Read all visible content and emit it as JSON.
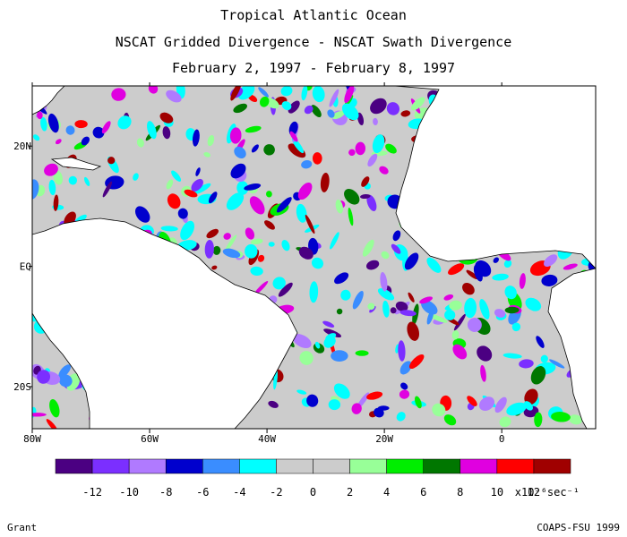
{
  "title_lines": [
    "Tropical Atlantic Ocean",
    "NSCAT Gridded Divergence - NSCAT Swath Divergence",
    "February 2, 1997 - February 8, 1997"
  ],
  "map": {
    "lon_range": [
      -80,
      16
    ],
    "lat_range": [
      -27,
      30
    ],
    "lon_ticks": [
      {
        "value": -80,
        "label": "80W"
      },
      {
        "value": -60,
        "label": "60W"
      },
      {
        "value": -40,
        "label": "40W"
      },
      {
        "value": -20,
        "label": "20W"
      },
      {
        "value": 0,
        "label": "0"
      }
    ],
    "lat_ticks": [
      {
        "value": 20,
        "label": "20N"
      },
      {
        "value": 0,
        "label": "EQ"
      },
      {
        "value": -20,
        "label": "20S"
      }
    ],
    "land_color": "#ffffff",
    "background_value_color": "#cccccc"
  },
  "colorbar": {
    "colors": [
      "#4b0082",
      "#7b2fff",
      "#b07aff",
      "#0000cd",
      "#3a8dff",
      "#00ffff",
      "#cccccc",
      "#cccccc",
      "#98ff98",
      "#00ee00",
      "#007700",
      "#e000e0",
      "#ff0000",
      "#a00000"
    ],
    "labels": [
      "-12",
      "-10",
      "-8",
      "-6",
      "-4",
      "-2",
      "0",
      "2",
      "4",
      "6",
      "8",
      "10",
      "12"
    ],
    "units": "x10⁻⁶sec⁻¹"
  },
  "footer": {
    "left": "Grant",
    "right": "COAPS-FSU 1999"
  }
}
